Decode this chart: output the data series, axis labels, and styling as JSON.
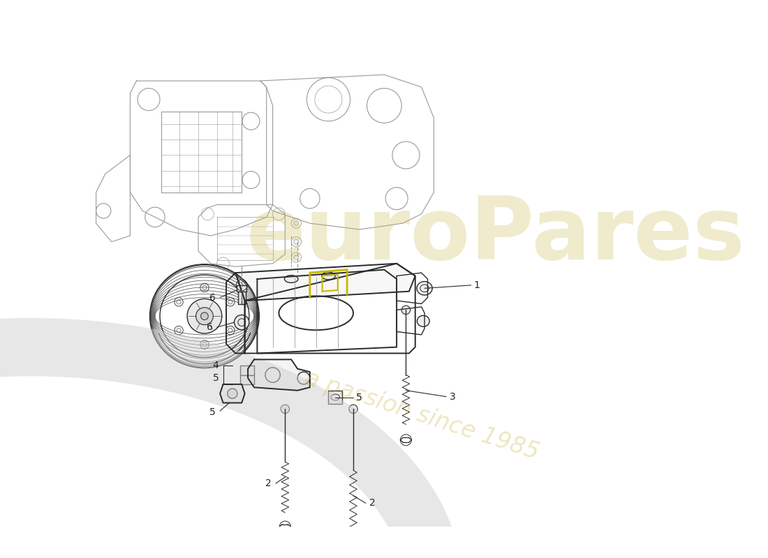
{
  "background_color": "#ffffff",
  "watermark_text": "euroPares",
  "watermark_subtext": "a passion since 1985",
  "watermark_color_hex": "#c8b84a",
  "watermark_alpha": 0.28,
  "line_color": "#2a2a2a",
  "light_line_color": "#888888",
  "very_light_color": "#bbbbbb",
  "yellow_line": "#c8b800",
  "lw_thin": 0.6,
  "lw_med": 1.0,
  "lw_thick": 1.4,
  "label_fontsize": 10,
  "label_color": "#222222",
  "swirl_color": "#d0d0d0",
  "swirl_alpha": 0.5
}
